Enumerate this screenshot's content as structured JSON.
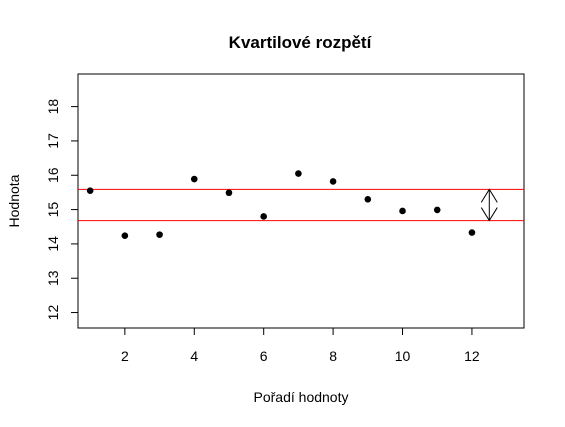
{
  "chart_data": {
    "type": "scatter",
    "title": "Kvartilové rozpětí",
    "xlabel": "Pořadí hodnoty",
    "ylabel": "Hodnota",
    "xlim": [
      0.65,
      13.5
    ],
    "ylim": [
      11.55,
      18.95
    ],
    "x_ticks": [
      2,
      4,
      6,
      8,
      10,
      12
    ],
    "y_ticks": [
      12,
      13,
      14,
      15,
      16,
      17,
      18
    ],
    "x": [
      1,
      2,
      3,
      4,
      5,
      6,
      7,
      8,
      9,
      10,
      11,
      12
    ],
    "y": [
      15.55,
      14.24,
      14.27,
      15.89,
      15.49,
      14.8,
      16.05,
      15.82,
      15.3,
      14.96,
      14.99,
      14.33
    ],
    "point_color": "#000000",
    "reference_lines": [
      {
        "orientation": "horizontal",
        "y": 15.59,
        "color": "#ff0000"
      },
      {
        "orientation": "horizontal",
        "y": 14.68,
        "color": "#ff0000"
      }
    ],
    "range_arrow": {
      "x": 12.5,
      "y_from": 14.68,
      "y_to": 15.59,
      "color": "#000000"
    },
    "grid": false,
    "legend": "none"
  }
}
